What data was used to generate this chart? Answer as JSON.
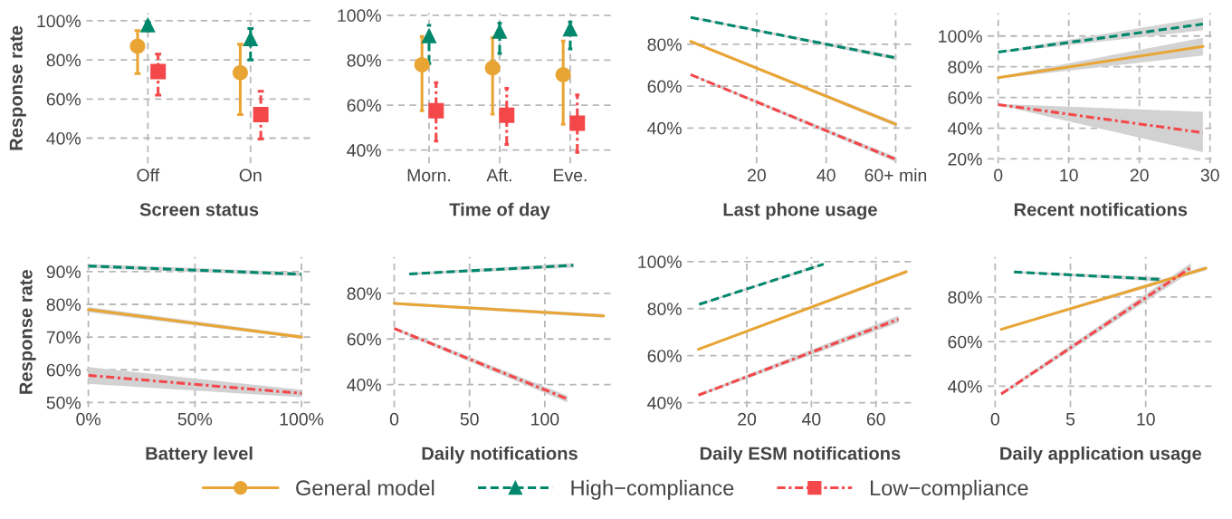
{
  "chart_data": [
    {
      "type": "scatter",
      "xlabel": "Screen status",
      "ylabel": "Response rate",
      "categories": [
        "Off",
        "On"
      ],
      "ylim": [
        27,
        104
      ],
      "yticks": [
        {
          "value": 40,
          "label": "40%"
        },
        {
          "value": 60,
          "label": "60%"
        },
        {
          "value": 80,
          "label": "80%"
        },
        {
          "value": 100,
          "label": "100%"
        }
      ],
      "grid": true,
      "legend": "bottom",
      "series": [
        {
          "name": "General model",
          "color": "#e9a534",
          "marker": "circle",
          "line_style": "solid",
          "values": [
            87,
            73.5
          ],
          "errors": [
            [
              73,
              95
            ],
            [
              52,
              88
            ]
          ]
        },
        {
          "name": "High−compliance",
          "color": "#00876c",
          "marker": "triangle",
          "line_style": "dashed",
          "values": [
            98,
            91
          ],
          "errors": [
            [
              95,
              99
            ],
            [
              80,
              96
            ]
          ]
        },
        {
          "name": "Low−compliance",
          "color": "#f4474a",
          "marker": "square",
          "line_style": "dashdot",
          "values": [
            74,
            52
          ],
          "errors": [
            [
              62,
              83
            ],
            [
              39.5,
              64
            ]
          ]
        }
      ]
    },
    {
      "type": "scatter",
      "xlabel": "Time of day",
      "categories": [
        "Morn.",
        "Aft.",
        "Eve."
      ],
      "ylim": [
        34,
        101
      ],
      "yticks": [
        {
          "value": 40,
          "label": "40%"
        },
        {
          "value": 60,
          "label": "60%"
        },
        {
          "value": 80,
          "label": "80%"
        },
        {
          "value": 100,
          "label": "100%"
        }
      ],
      "grid": true,
      "series": [
        {
          "color": "#e9a534",
          "marker": "circle",
          "line_style": "solid",
          "values": [
            78,
            76.5,
            73.5
          ],
          "errors": [
            [
              57.5,
              90.5
            ],
            [
              56,
              90
            ],
            [
              51.5,
              88.5
            ]
          ]
        },
        {
          "color": "#00876c",
          "marker": "triangle",
          "line_style": "dashed",
          "values": [
            91,
            93,
            94
          ],
          "errors": [
            [
              78.5,
              95.5
            ],
            [
              83,
              96.5
            ],
            [
              85,
              97
            ]
          ]
        },
        {
          "color": "#f4474a",
          "marker": "square",
          "line_style": "dashdot",
          "values": [
            57.5,
            55.5,
            52
          ],
          "errors": [
            [
              44,
              70
            ],
            [
              42.5,
              67.5
            ],
            [
              39,
              64.5
            ]
          ]
        }
      ]
    },
    {
      "type": "line",
      "xlabel": "Last phone usage",
      "xlim": [
        0,
        65
      ],
      "xticks": [
        20,
        40,
        {
          "value": 60,
          "label": "60+ min"
        }
      ],
      "ylim": [
        23,
        95
      ],
      "yticks": [
        {
          "value": 40,
          "label": "40%"
        },
        {
          "value": 60,
          "label": "60%"
        },
        {
          "value": 80,
          "label": "80%"
        }
      ],
      "grid": true,
      "series": [
        {
          "color": "#e9a534",
          "line_style": "solid",
          "x": [
            1,
            60
          ],
          "values": [
            81.4,
            41.8
          ],
          "lower": [
            81,
            40.8
          ],
          "upper": [
            81.8,
            42.8
          ]
        },
        {
          "color": "#00876c",
          "line_style": "dashed",
          "x": [
            1,
            60
          ],
          "values": [
            92.9,
            73.5
          ],
          "lower": [
            92.5,
            72.5
          ],
          "upper": [
            93.3,
            74.5
          ]
        },
        {
          "color": "#f4474a",
          "line_style": "dashdot",
          "x": [
            1,
            60
          ],
          "values": [
            65.5,
            25
          ],
          "lower": [
            65,
            23.8
          ],
          "upper": [
            66,
            26.2
          ]
        }
      ]
    },
    {
      "type": "line",
      "xlabel": "Recent notifications",
      "xlim": [
        -1.5,
        30.5
      ],
      "xticks": [
        0,
        10,
        20,
        30
      ],
      "ylim": [
        17,
        115
      ],
      "yticks": [
        {
          "value": 20,
          "label": "20%"
        },
        {
          "value": 40,
          "label": "40%"
        },
        {
          "value": 60,
          "label": "60%"
        },
        {
          "value": 80,
          "label": "80%"
        },
        {
          "value": 100,
          "label": "100%"
        }
      ],
      "grid": true,
      "series": [
        {
          "color": "#e9a534",
          "line_style": "solid",
          "x": [
            0,
            29
          ],
          "values": [
            72.9,
            93.2
          ],
          "lower": [
            72.3,
            87.3
          ],
          "upper": [
            73.5,
            98.8
          ]
        },
        {
          "color": "#00876c",
          "line_style": "dashed",
          "x": [
            0,
            29
          ],
          "values": [
            89.5,
            107.8
          ],
          "lower": [
            89,
            103.7
          ],
          "upper": [
            90,
            112
          ]
        },
        {
          "color": "#f4474a",
          "line_style": "dashdot",
          "x": [
            0,
            29
          ],
          "values": [
            55.4,
            37.1
          ],
          "lower": [
            55,
            24.4
          ],
          "upper": [
            55.8,
            50.7
          ]
        }
      ]
    },
    {
      "type": "line",
      "xlabel": "Battery level",
      "ylabel": "Response rate",
      "xlim": [
        -1,
        105
      ],
      "xticks": [
        {
          "value": 0,
          "label": "0%"
        },
        {
          "value": 50,
          "label": "50%"
        },
        {
          "value": 100,
          "label": "100%"
        }
      ],
      "ylim": [
        48.5,
        94.5
      ],
      "yticks": [
        {
          "value": 50,
          "label": "50%"
        },
        {
          "value": 60,
          "label": "60%"
        },
        {
          "value": 70,
          "label": "70%"
        },
        {
          "value": 80,
          "label": "80%"
        },
        {
          "value": 90,
          "label": "90%"
        }
      ],
      "grid": true,
      "series": [
        {
          "color": "#e9a534",
          "line_style": "solid",
          "x": [
            0,
            100
          ],
          "values": [
            78.4,
            70
          ],
          "lower": [
            77.6,
            69.5
          ],
          "upper": [
            79.2,
            70.5
          ]
        },
        {
          "color": "#00876c",
          "line_style": "dashed",
          "x": [
            0,
            100
          ],
          "values": [
            91.7,
            89.2
          ],
          "lower": [
            91.1,
            88.6
          ],
          "upper": [
            92.3,
            89.8
          ]
        },
        {
          "color": "#f4474a",
          "line_style": "dashdot",
          "x": [
            0,
            100
          ],
          "values": [
            58.3,
            52.8
          ],
          "lower": [
            55.7,
            51.6
          ],
          "upper": [
            60.8,
            53.9
          ]
        }
      ]
    },
    {
      "type": "line",
      "xlabel": "Daily notifications",
      "xlim": [
        -5,
        145
      ],
      "xticks": [
        0,
        50,
        100
      ],
      "ylim": [
        30,
        96
      ],
      "yticks": [
        {
          "value": 40,
          "label": "40%"
        },
        {
          "value": 60,
          "label": "60%"
        },
        {
          "value": 80,
          "label": "80%"
        }
      ],
      "grid": true,
      "series": [
        {
          "color": "#e9a534",
          "line_style": "solid",
          "x": [
            0,
            139
          ],
          "values": [
            75.6,
            70.1
          ],
          "lower": [
            75,
            69.3
          ],
          "upper": [
            76.2,
            70.9
          ]
        },
        {
          "color": "#00876c",
          "line_style": "dashed",
          "x": [
            10,
            119
          ],
          "values": [
            88.5,
            92.3
          ],
          "lower": [
            88,
            91.3
          ],
          "upper": [
            89,
            93.3
          ]
        },
        {
          "color": "#f4474a",
          "line_style": "dashdot",
          "x": [
            0,
            115
          ],
          "values": [
            64.6,
            33.7
          ],
          "lower": [
            63.9,
            32.2
          ],
          "upper": [
            65.3,
            35.2
          ]
        }
      ]
    },
    {
      "type": "line",
      "xlabel": "Daily ESM notifications",
      "xlim": [
        1.5,
        71.5
      ],
      "xticks": [
        20,
        40,
        60
      ],
      "ylim": [
        38,
        102
      ],
      "yticks": [
        {
          "value": 40,
          "label": "40%"
        },
        {
          "value": 60,
          "label": "60%"
        },
        {
          "value": 80,
          "label": "80%"
        },
        {
          "value": 100,
          "label": "100%"
        }
      ],
      "grid": true,
      "series": [
        {
          "color": "#e9a534",
          "line_style": "solid",
          "x": [
            5,
            69.4
          ],
          "values": [
            62.7,
            95.7
          ],
          "lower": [
            62.3,
            95
          ],
          "upper": [
            63.1,
            96.4
          ]
        },
        {
          "color": "#00876c",
          "line_style": "dashed",
          "x": [
            5.2,
            43.8
          ],
          "values": [
            81.8,
            98.9
          ],
          "lower": [
            81.4,
            98.4
          ],
          "upper": [
            82.2,
            99.4
          ]
        },
        {
          "color": "#f4474a",
          "line_style": "dashdot",
          "x": [
            5,
            67
          ],
          "values": [
            43.2,
            75.5
          ],
          "lower": [
            42.6,
            74
          ],
          "upper": [
            43.8,
            77
          ]
        }
      ]
    },
    {
      "type": "line",
      "xlabel": "Daily application usage",
      "xlim": [
        -0.5,
        14.5
      ],
      "xticks": [
        0,
        5,
        10
      ],
      "ylim": [
        30.5,
        98
      ],
      "yticks": [
        {
          "value": 40,
          "label": "40%"
        },
        {
          "value": 60,
          "label": "60%"
        },
        {
          "value": 80,
          "label": "80%"
        }
      ],
      "grid": true,
      "series": [
        {
          "color": "#e9a534",
          "line_style": "solid",
          "x": [
            0.4,
            14
          ],
          "values": [
            65.5,
            92.9
          ],
          "lower": [
            65,
            91.9
          ],
          "upper": [
            66,
            93.9
          ]
        },
        {
          "color": "#00876c",
          "line_style": "dashed",
          "x": [
            1.25,
            11
          ],
          "values": [
            91.2,
            87.9
          ],
          "lower": [
            90.8,
            86.9
          ],
          "upper": [
            91.6,
            88.9
          ]
        },
        {
          "color": "#f4474a",
          "line_style": "dashdot",
          "x": [
            0.4,
            13
          ],
          "values": [
            36.5,
            93.2
          ],
          "lower": [
            35.8,
            91.2
          ],
          "upper": [
            37.2,
            95.2
          ]
        }
      ]
    }
  ]
}
